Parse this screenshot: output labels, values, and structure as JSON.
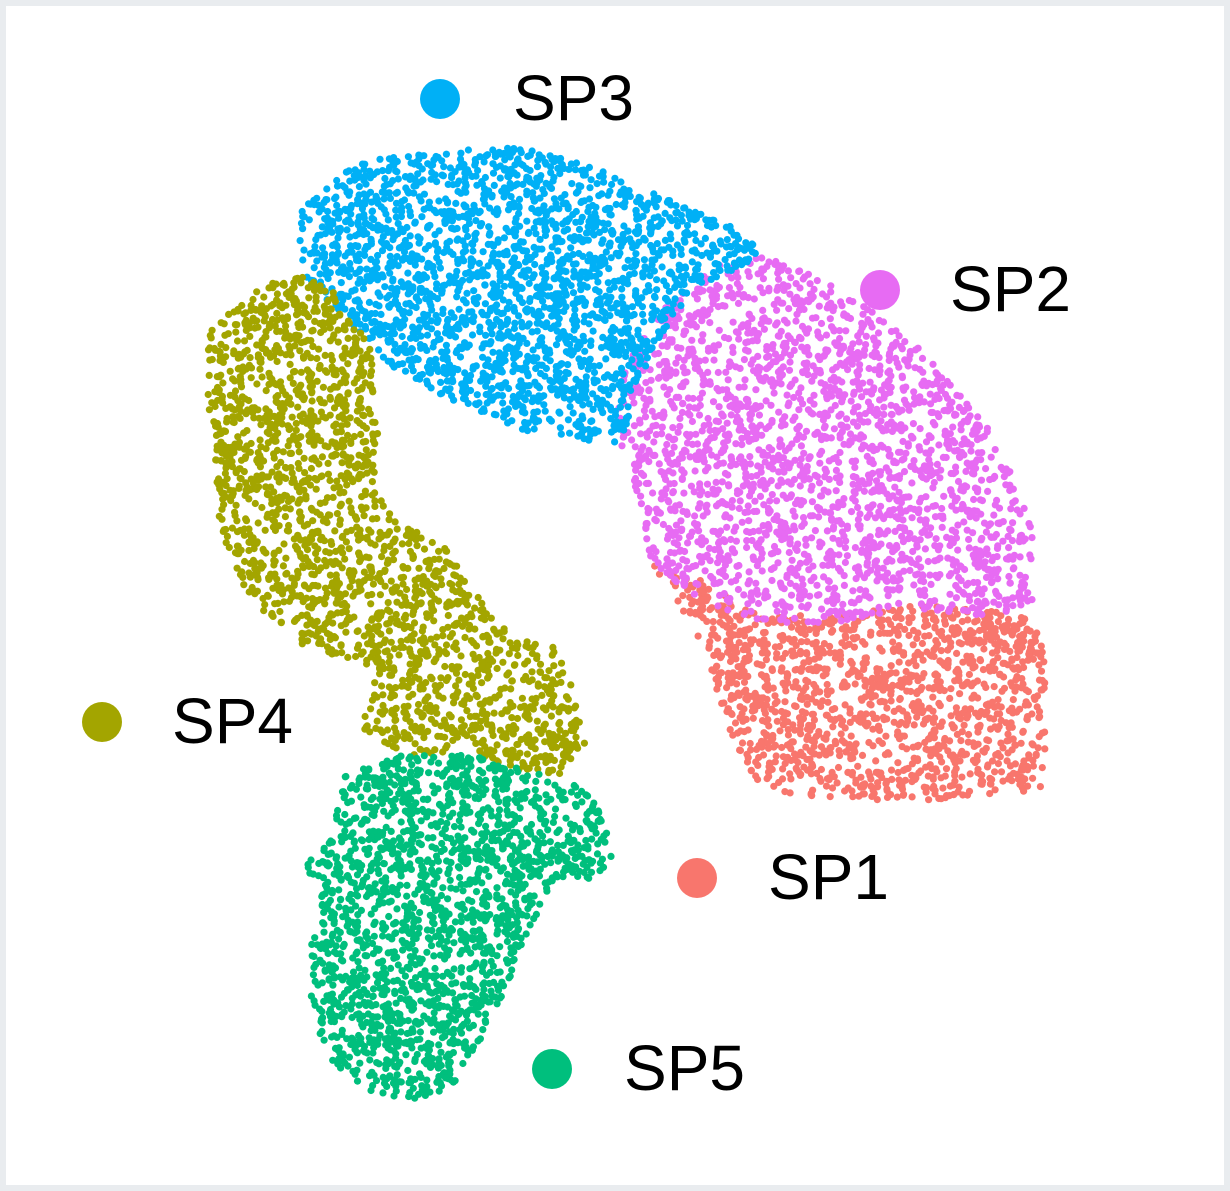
{
  "chart_data": {
    "type": "scatter",
    "title": "",
    "xlabel": "",
    "ylabel": "",
    "grid": false,
    "axes_visible": false,
    "legend": "labels placed beside each cluster",
    "series": [
      {
        "name": "SP1",
        "color": "#F8766D",
        "cluster_center": [
          0.68,
          -0.55
        ],
        "approx_points": 1400
      },
      {
        "name": "SP2",
        "color": "#E76BF3",
        "cluster_center": [
          0.68,
          0.22
        ],
        "approx_points": 2200
      },
      {
        "name": "SP3",
        "color": "#00B0F6",
        "cluster_center": [
          -0.05,
          0.8
        ],
        "approx_points": 2200
      },
      {
        "name": "SP4",
        "color": "#A3A500",
        "cluster_center": [
          -0.55,
          -0.1
        ],
        "approx_points": 2000
      },
      {
        "name": "SP5",
        "color": "#00BF7D",
        "cluster_center": [
          -0.32,
          -1.1
        ],
        "approx_points": 1800
      }
    ]
  },
  "legend": {
    "sp1": "SP1",
    "sp2": "SP2",
    "sp3": "SP3",
    "sp4": "SP4",
    "sp5": "SP5"
  }
}
